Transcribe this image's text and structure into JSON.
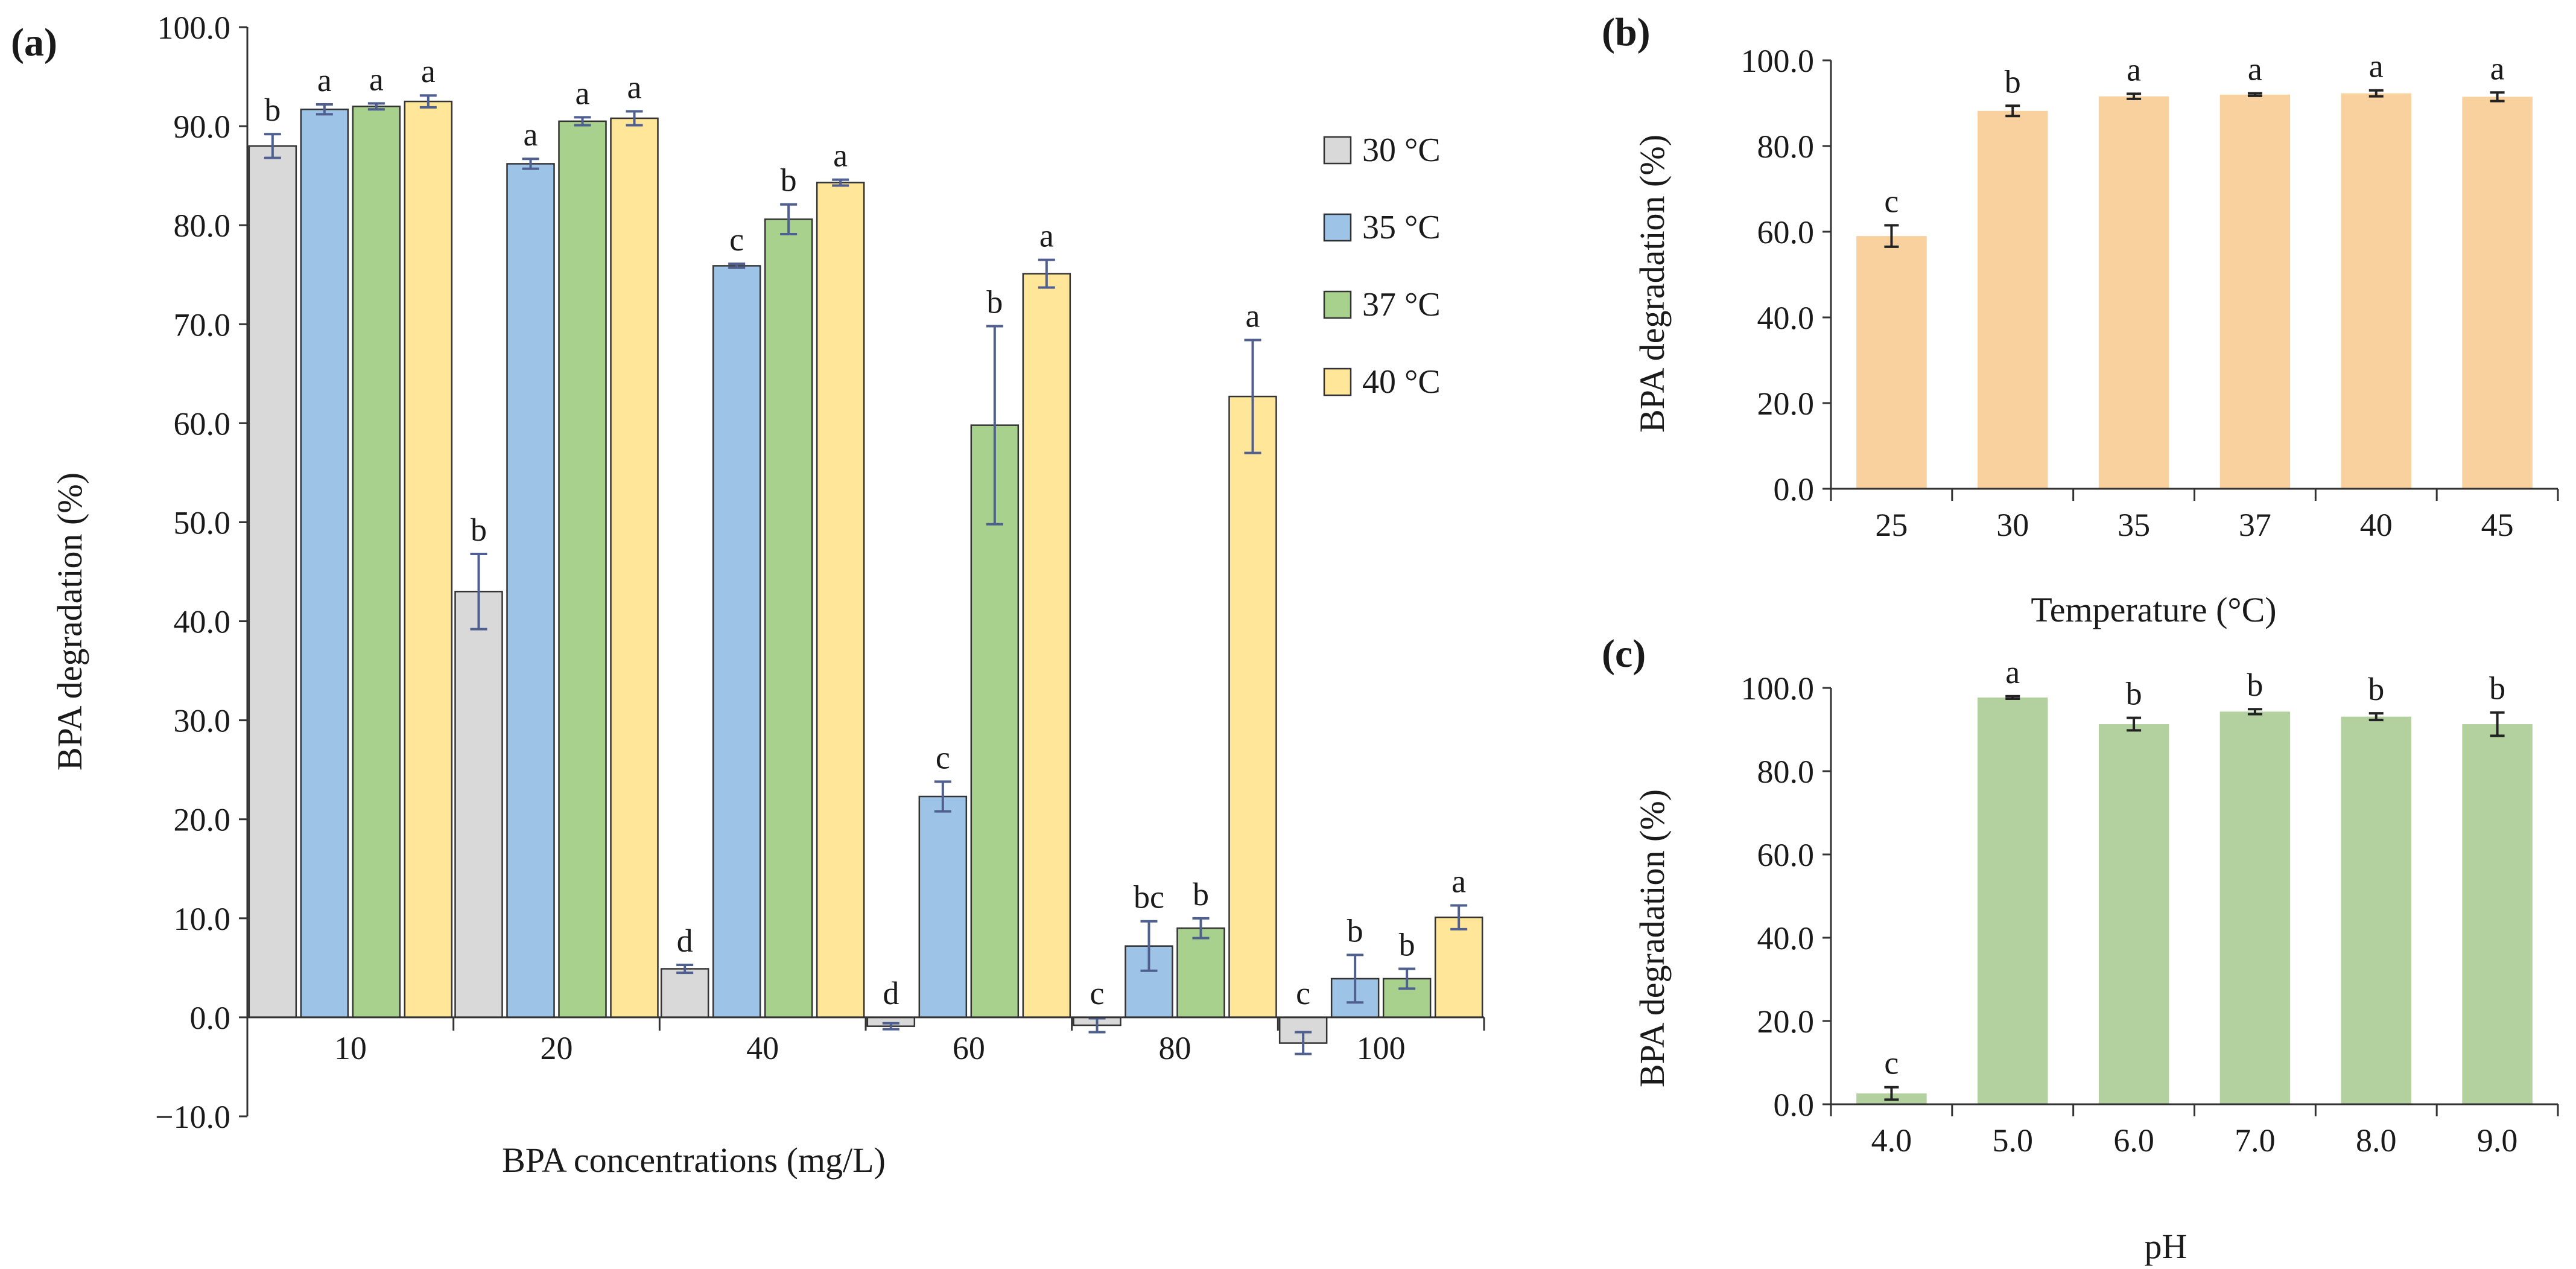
{
  "colors": {
    "c30": "#d9d9d9",
    "c35": "#9dc3e6",
    "c37": "#a9d18e",
    "c40": "#ffe699",
    "temp_bar": "#f9d19f",
    "ph_bar": "#b3d19f",
    "err_a": "#4f5f8f",
    "err_bc": "#222222"
  },
  "chart_data": [
    {
      "id": "a",
      "panel_label": "(a)",
      "type": "bar",
      "title": "",
      "xlabel": "BPA concentrations (mg/L)",
      "ylabel": "BPA degradation (%)",
      "ylim": [
        -10,
        100
      ],
      "yticks": [
        -10,
        0,
        10,
        20,
        30,
        40,
        50,
        60,
        70,
        80,
        90,
        100
      ],
      "ytick_labels": [
        "−10.0",
        "0.0",
        "10.0",
        "20.0",
        "30.0",
        "40.0",
        "50.0",
        "60.0",
        "70.0",
        "80.0",
        "90.0",
        "100.0"
      ],
      "categories": [
        "10",
        "20",
        "40",
        "60",
        "80",
        "100"
      ],
      "legend_position": "top-right",
      "series": [
        {
          "name": "30 °C",
          "color_key": "c30",
          "values": [
            88.0,
            43.0,
            4.9,
            -0.9,
            -0.8,
            -2.6
          ],
          "errors": [
            1.2,
            3.8,
            0.4,
            0.3,
            0.7,
            1.1
          ],
          "letters": [
            "b",
            "b",
            "d",
            "d",
            "c",
            "c"
          ]
        },
        {
          "name": "35 °C",
          "color_key": "c35",
          "values": [
            91.7,
            86.2,
            75.9,
            22.3,
            7.2,
            3.9
          ],
          "errors": [
            0.5,
            0.5,
            0.2,
            1.5,
            2.5,
            2.4
          ],
          "letters": [
            "a",
            "a",
            "c",
            "c",
            "bc",
            "b"
          ]
        },
        {
          "name": "37 °C",
          "color_key": "c37",
          "values": [
            92.0,
            90.5,
            80.6,
            59.8,
            9.0,
            3.9
          ],
          "errors": [
            0.3,
            0.4,
            1.5,
            10.0,
            1.0,
            1.0
          ],
          "letters": [
            "a",
            "a",
            "b",
            "b",
            "b",
            "b"
          ]
        },
        {
          "name": "40 °C",
          "color_key": "c40",
          "values": [
            92.5,
            90.8,
            84.3,
            75.1,
            62.7,
            10.1
          ],
          "errors": [
            0.6,
            0.7,
            0.3,
            1.4,
            5.7,
            1.2
          ],
          "letters": [
            "a",
            "a",
            "a",
            "a",
            "a",
            "a"
          ]
        }
      ]
    },
    {
      "id": "b",
      "panel_label": "(b)",
      "type": "bar",
      "title": "",
      "xlabel": "Temperature (°C)",
      "ylabel": "BPA degradation (%)",
      "ylim": [
        0,
        100
      ],
      "yticks": [
        0,
        20,
        40,
        60,
        80,
        100
      ],
      "ytick_labels": [
        "0.0",
        "20.0",
        "40.0",
        "60.0",
        "80.0",
        "100.0"
      ],
      "categories": [
        "25",
        "30",
        "35",
        "37",
        "40",
        "45"
      ],
      "color_key": "temp_bar",
      "values": [
        59.0,
        88.2,
        91.6,
        92.0,
        92.3,
        91.5
      ],
      "errors": [
        2.5,
        1.2,
        0.6,
        0.3,
        0.7,
        1.0
      ],
      "letters": [
        "c",
        "b",
        "a",
        "a",
        "a",
        "a"
      ]
    },
    {
      "id": "c",
      "panel_label": "(c)",
      "type": "bar",
      "title": "",
      "xlabel": "pH",
      "ylabel": "BPA degradation (%)",
      "ylim": [
        0,
        100
      ],
      "yticks": [
        0,
        20,
        40,
        60,
        80,
        100
      ],
      "ytick_labels": [
        "0.0",
        "20.0",
        "40.0",
        "60.0",
        "80.0",
        "100.0"
      ],
      "categories": [
        "4.0",
        "5.0",
        "6.0",
        "7.0",
        "8.0",
        "9.0"
      ],
      "color_key": "ph_bar",
      "values": [
        2.6,
        97.7,
        91.3,
        94.3,
        93.1,
        91.3
      ],
      "errors": [
        1.5,
        0.3,
        1.5,
        0.6,
        0.8,
        2.8
      ],
      "letters": [
        "c",
        "a",
        "b",
        "b",
        "b",
        "b"
      ]
    }
  ]
}
